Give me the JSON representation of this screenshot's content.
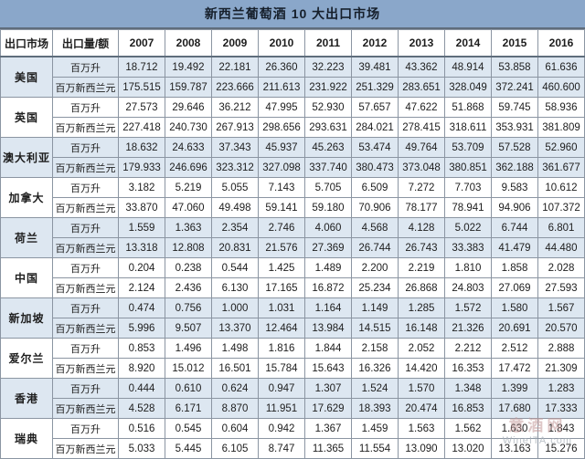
{
  "title": "新西兰葡萄酒 10 大出口市场",
  "watermark": {
    "site_name": "意酒网",
    "site_url": "WineITA.com"
  },
  "colors": {
    "title_bg": "#8aa7ca",
    "band_bg": "#dde7f1",
    "border": "#8b95a2"
  },
  "chart_data": {
    "type": "table",
    "title": "新西兰葡萄酒 10 大出口市场",
    "columns": [
      "出口市场",
      "出口量/额",
      "2007",
      "2008",
      "2009",
      "2010",
      "2011",
      "2012",
      "2013",
      "2014",
      "2015",
      "2016"
    ],
    "unit_labels": {
      "volume": "百万升",
      "value": "百万新西兰元"
    },
    "markets": [
      {
        "name": "美国",
        "rows": [
          {
            "unit": "百万升",
            "values": [
              "18.712",
              "19.492",
              "22.181",
              "26.360",
              "32.223",
              "39.481",
              "43.362",
              "48.914",
              "53.858",
              "61.636"
            ]
          },
          {
            "unit": "百万新西兰元",
            "values": [
              "175.515",
              "159.787",
              "223.666",
              "211.613",
              "231.922",
              "251.329",
              "283.651",
              "328.049",
              "372.241",
              "460.600"
            ]
          }
        ]
      },
      {
        "name": "英国",
        "rows": [
          {
            "unit": "百万升",
            "values": [
              "27.573",
              "29.646",
              "36.212",
              "47.995",
              "52.930",
              "57.657",
              "47.622",
              "51.868",
              "59.745",
              "58.936"
            ]
          },
          {
            "unit": "百万新西兰元",
            "values": [
              "227.418",
              "240.730",
              "267.913",
              "298.656",
              "293.631",
              "284.021",
              "278.415",
              "318.611",
              "353.931",
              "381.809"
            ]
          }
        ]
      },
      {
        "name": "澳大利亚",
        "rows": [
          {
            "unit": "百万升",
            "values": [
              "18.632",
              "24.633",
              "37.343",
              "45.937",
              "45.263",
              "53.474",
              "49.764",
              "53.709",
              "57.528",
              "52.960"
            ]
          },
          {
            "unit": "百万新西兰元",
            "values": [
              "179.933",
              "246.696",
              "323.312",
              "327.098",
              "337.740",
              "380.473",
              "373.048",
              "380.851",
              "362.188",
              "361.677"
            ]
          }
        ]
      },
      {
        "name": "加拿大",
        "rows": [
          {
            "unit": "百万升",
            "values": [
              "3.182",
              "5.219",
              "5.055",
              "7.143",
              "5.705",
              "6.509",
              "7.272",
              "7.703",
              "9.583",
              "10.612"
            ]
          },
          {
            "unit": "百万新西兰元",
            "values": [
              "33.870",
              "47.060",
              "49.498",
              "59.141",
              "59.180",
              "70.906",
              "78.177",
              "78.941",
              "94.906",
              "107.372"
            ]
          }
        ]
      },
      {
        "name": "荷兰",
        "rows": [
          {
            "unit": "百万升",
            "values": [
              "1.559",
              "1.363",
              "2.354",
              "2.746",
              "4.060",
              "4.568",
              "4.128",
              "5.022",
              "6.744",
              "6.801"
            ]
          },
          {
            "unit": "百万新西兰元",
            "values": [
              "13.318",
              "12.808",
              "20.831",
              "21.576",
              "27.369",
              "26.744",
              "26.743",
              "33.383",
              "41.479",
              "44.480"
            ]
          }
        ]
      },
      {
        "name": "中国",
        "rows": [
          {
            "unit": "百万升",
            "values": [
              "0.204",
              "0.238",
              "0.544",
              "1.425",
              "1.489",
              "2.200",
              "2.219",
              "1.810",
              "1.858",
              "2.028"
            ]
          },
          {
            "unit": "百万新西兰元",
            "values": [
              "2.124",
              "2.436",
              "6.130",
              "17.165",
              "16.872",
              "25.234",
              "26.868",
              "24.803",
              "27.069",
              "27.593"
            ]
          }
        ]
      },
      {
        "name": "新加坡",
        "rows": [
          {
            "unit": "百万升",
            "values": [
              "0.474",
              "0.756",
              "1.000",
              "1.031",
              "1.164",
              "1.149",
              "1.285",
              "1.572",
              "1.580",
              "1.567"
            ]
          },
          {
            "unit": "百万新西兰元",
            "values": [
              "5.996",
              "9.507",
              "13.370",
              "12.464",
              "13.984",
              "14.515",
              "16.148",
              "21.326",
              "20.691",
              "20.570"
            ]
          }
        ]
      },
      {
        "name": "爱尔兰",
        "rows": [
          {
            "unit": "百万升",
            "values": [
              "0.853",
              "1.496",
              "1.498",
              "1.816",
              "1.844",
              "2.158",
              "2.052",
              "2.212",
              "2.512",
              "2.888"
            ]
          },
          {
            "unit": "百万新西兰元",
            "values": [
              "8.920",
              "15.012",
              "16.501",
              "15.784",
              "15.643",
              "16.326",
              "14.420",
              "16.353",
              "17.472",
              "21.309"
            ]
          }
        ]
      },
      {
        "name": "香港",
        "rows": [
          {
            "unit": "百万升",
            "values": [
              "0.444",
              "0.610",
              "0.624",
              "0.947",
              "1.307",
              "1.524",
              "1.570",
              "1.348",
              "1.399",
              "1.283"
            ]
          },
          {
            "unit": "百万新西兰元",
            "values": [
              "4.528",
              "6.171",
              "8.870",
              "11.951",
              "17.629",
              "18.393",
              "20.474",
              "16.853",
              "17.680",
              "17.333"
            ]
          }
        ]
      },
      {
        "name": "瑞典",
        "rows": [
          {
            "unit": "百万升",
            "values": [
              "0.516",
              "0.545",
              "0.604",
              "0.942",
              "1.367",
              "1.459",
              "1.563",
              "1.562",
              "1.630",
              "1.843"
            ]
          },
          {
            "unit": "百万新西兰元",
            "values": [
              "5.033",
              "5.445",
              "6.105",
              "8.747",
              "11.365",
              "11.554",
              "13.090",
              "13.020",
              "13.163",
              "15.276"
            ]
          }
        ]
      }
    ]
  }
}
